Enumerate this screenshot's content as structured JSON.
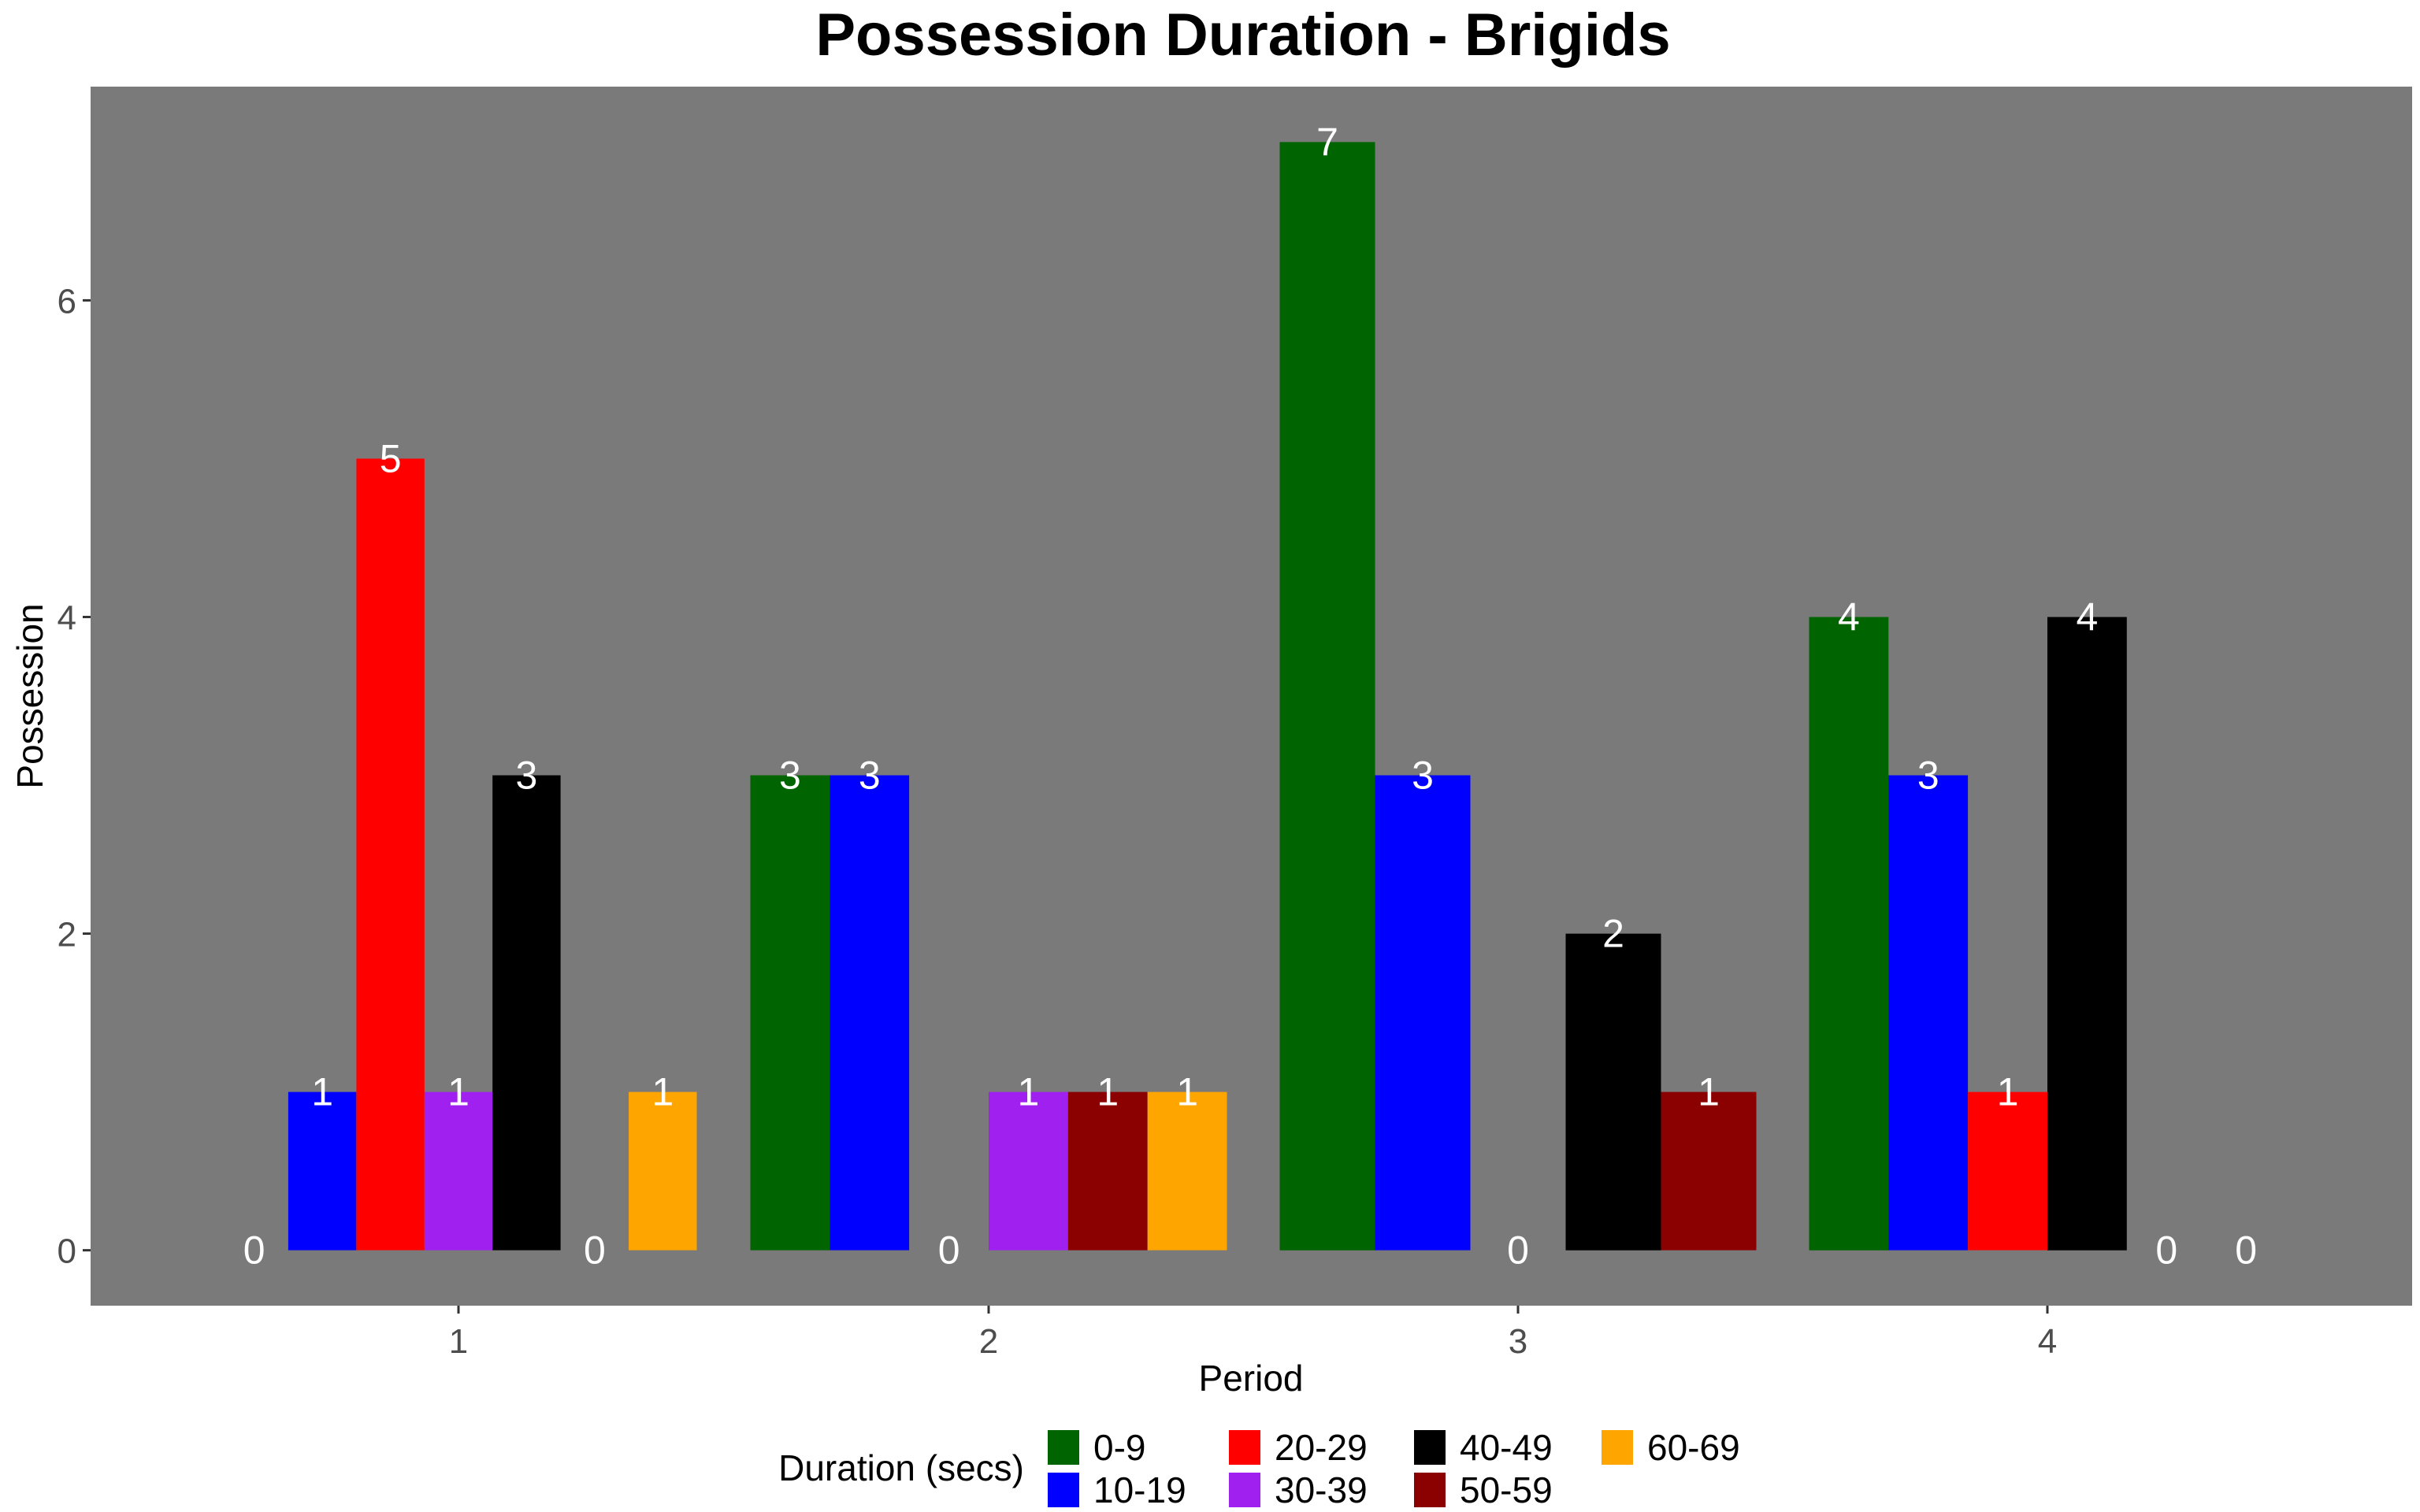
{
  "chart_data": {
    "type": "bar",
    "title": "Possession Duration - Brigids",
    "xlabel": "Period",
    "ylabel": "Possession",
    "categories": [
      "1",
      "2",
      "3",
      "4"
    ],
    "yticks": [
      "0",
      "2",
      "4",
      "6"
    ],
    "ylim": [
      -0.35,
      7.35
    ],
    "grid": false,
    "panel_color": "#7a7a7a",
    "legend": {
      "title": "Duration (secs)",
      "position": "bottom",
      "items": [
        {
          "label": "0-9",
          "color": "#006400"
        },
        {
          "label": "10-19",
          "color": "#0000ff"
        },
        {
          "label": "20-29",
          "color": "#ff0000"
        },
        {
          "label": "30-39",
          "color": "#a020f0"
        },
        {
          "label": "40-49",
          "color": "#000000"
        },
        {
          "label": "50-59",
          "color": "#8b0000"
        },
        {
          "label": "60-69",
          "color": "#ffa500"
        }
      ]
    },
    "groups": [
      {
        "category": "1",
        "bars": [
          {
            "series": "0-9",
            "value": 0
          },
          {
            "series": "10-19",
            "value": 1
          },
          {
            "series": "20-29",
            "value": 5
          },
          {
            "series": "30-39",
            "value": 1
          },
          {
            "series": "40-49",
            "value": 3
          },
          {
            "series": "50-59",
            "value": 0
          },
          {
            "series": "60-69",
            "value": 1
          }
        ]
      },
      {
        "category": "2",
        "bars": [
          {
            "series": "0-9",
            "value": 3
          },
          {
            "series": "10-19",
            "value": 3
          },
          {
            "series": "20-29",
            "value": 0
          },
          {
            "series": "30-39",
            "value": 1
          },
          {
            "series": "50-59",
            "value": 1
          },
          {
            "series": "60-69",
            "value": 1
          }
        ]
      },
      {
        "category": "3",
        "bars": [
          {
            "series": "0-9",
            "value": 7
          },
          {
            "series": "10-19",
            "value": 3
          },
          {
            "series": "20-29",
            "value": 0
          },
          {
            "series": "40-49",
            "value": 2
          },
          {
            "series": "50-59",
            "value": 1
          }
        ]
      },
      {
        "category": "4",
        "bars": [
          {
            "series": "0-9",
            "value": 4
          },
          {
            "series": "10-19",
            "value": 3
          },
          {
            "series": "20-29",
            "value": 1
          },
          {
            "series": "40-49",
            "value": 4
          },
          {
            "series": "50-59",
            "value": 0
          },
          {
            "series": "60-69",
            "value": 0
          }
        ]
      }
    ]
  }
}
